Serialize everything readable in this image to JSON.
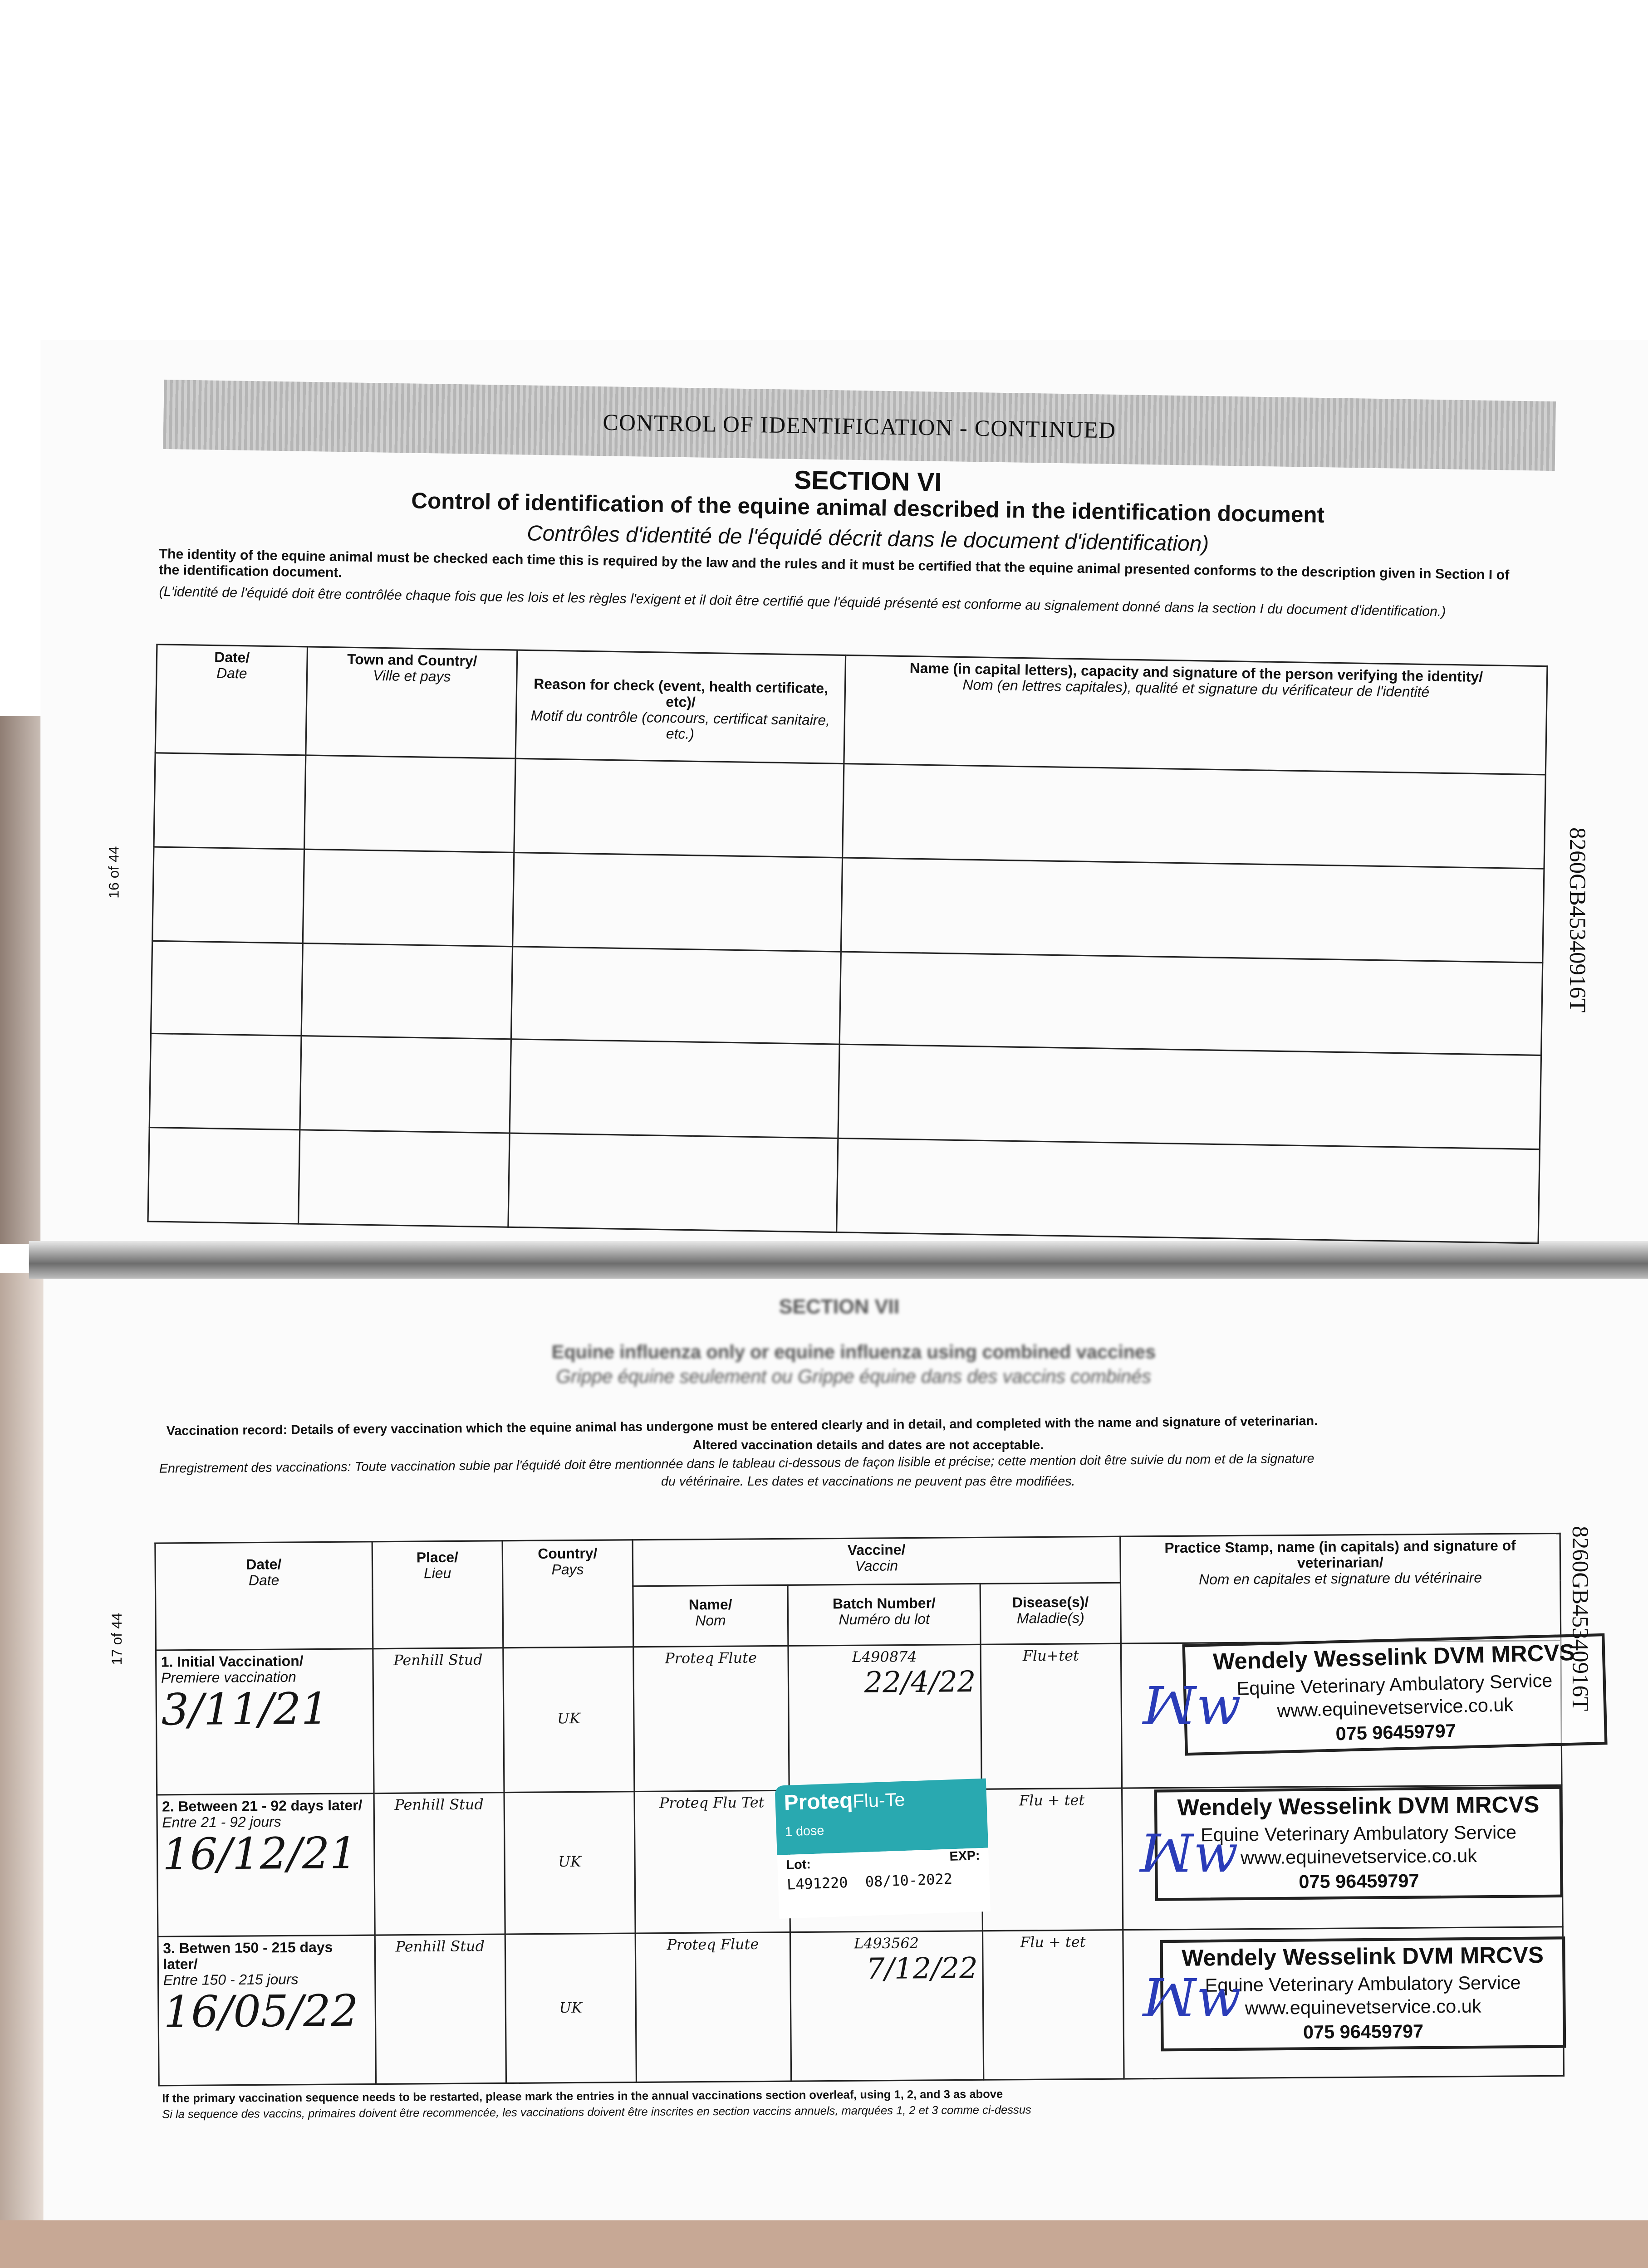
{
  "top_page": {
    "header_bar": "CONTROL OF IDENTIFICATION - CONTINUED",
    "section": "SECTION VI",
    "title": "Control of identification of the equine animal described in the identification document",
    "title_fr": "Contrôles d'identité de l'équidé décrit dans le document d'identification)",
    "instruction": "The identity of the equine animal must be checked each time this is required by the law and the rules and it must be certified that the equine animal presented conforms to the description given in Section I of the identification document.",
    "instruction_fr": "(L'identité de l'équidé doit être contrôlée chaque fois que les lois et les règles l'exigent et il doit être certifié que l'équidé présenté est conforme au signalement donné dans la section I du document d'identification.)",
    "columns": [
      {
        "en": "Date/",
        "fr": "Date"
      },
      {
        "en": "Town and Country/",
        "fr": "Ville et pays"
      },
      {
        "en": "Reason for check (event, health certificate, etc)/",
        "fr": "Motif du contrôle (concours, certificat sanitaire, etc.)"
      },
      {
        "en": "Name (in capital letters), capacity and signature of the person verifying the identity/",
        "fr": "Nom (en lettres capitales), qualité et signature du vérificateur de l'identité"
      }
    ],
    "page_number": "16 of 44",
    "passport_code": "8260GB45340916T"
  },
  "bottom_page": {
    "section": "SECTION VII",
    "title": "Equine influenza only or equine influenza using combined vaccines",
    "title_fr": "Grippe équine seulement ou Grippe équine dans des vaccins combinés",
    "instruction": "Vaccination record: Details of every vaccination which the equine animal has undergone must be entered clearly and in detail, and completed with the name and signature of veterinarian.",
    "instruction2": "Altered vaccination details and dates are not acceptable.",
    "instruction_fr": "Enregistrement des vaccinations: Toute vaccination subie par l'équidé doit être mentionnée dans le tableau ci-dessous de façon lisible et précise; cette mention doit être suivie du nom et de la signature",
    "instruction_fr2": "du vétérinaire. Les dates et vaccinations ne peuvent pas être modifiées.",
    "columns": {
      "date": {
        "en": "Date/",
        "fr": "Date"
      },
      "place": {
        "en": "Place/",
        "fr": "Lieu"
      },
      "country": {
        "en": "Country/",
        "fr": "Pays"
      },
      "vaccine": {
        "en": "Vaccine/",
        "fr": "Vaccin"
      },
      "name": {
        "en": "Name/",
        "fr": "Nom"
      },
      "batch": {
        "en": "Batch Number/",
        "fr": "Numéro du lot"
      },
      "disease": {
        "en": "Disease(s)/",
        "fr": "Maladie(s)"
      },
      "stamp": {
        "en": "Practice Stamp, name (in capitals) and signature of veterinarian/",
        "fr": "Nom en capitales et signature du vétérinaire"
      }
    },
    "rows": [
      {
        "label": "1. Initial Vaccination/",
        "label_fr": "Premiere vaccination",
        "date": "3/11/21",
        "place": "Penhill Stud",
        "country": "UK",
        "name": "Proteq Flute",
        "batch": "L490874",
        "batch_date": "22/4/22",
        "disease": "Flu+tet"
      },
      {
        "label": "2. Between 21 - 92 days later/",
        "label_fr": "Entre 21 - 92 jours",
        "date": "16/12/21",
        "place": "Penhill Stud",
        "country": "UK",
        "name": "Proteq Flu Tet",
        "batch": "",
        "batch_date": "",
        "disease": "Flu + tet"
      },
      {
        "label": "3. Betwen 150 - 215 days later/",
        "label_fr": "Entre 150 - 215 jours",
        "date": "16/05/22",
        "place": "Penhill Stud",
        "country": "UK",
        "name": "Proteq Flute",
        "batch": "L493562",
        "batch_date": "7/12/22",
        "disease": "Flu + tet"
      }
    ],
    "stamp": {
      "name": "Wendely Wesselink DVM MRCVS",
      "service": "Equine Veterinary Ambulatory Service",
      "website": "www.equinevetservice.co.uk",
      "phone": "075 96459797"
    },
    "vaccine_label": {
      "brand": "Proteq",
      "product": "Flu-Te",
      "dose": "1 dose",
      "lot_label": "Lot:",
      "exp_label": "EXP:",
      "lot": "L491220",
      "exp": "08/10-2022",
      "color": "#29a9b0"
    },
    "footnote": "If the primary vaccination sequence needs to be restarted, please mark the entries in the annual vaccinations section overleaf, using 1, 2, and 3 as above",
    "footnote_fr": "Si la sequence des vaccins, primaires doivent être recommencée, les vaccinations doivent être inscrites en section vaccins annuels, marquées 1, 2 et 3 comme ci-dessus",
    "page_number": "17 of 44",
    "passport_code": "8260GB45340916T"
  }
}
